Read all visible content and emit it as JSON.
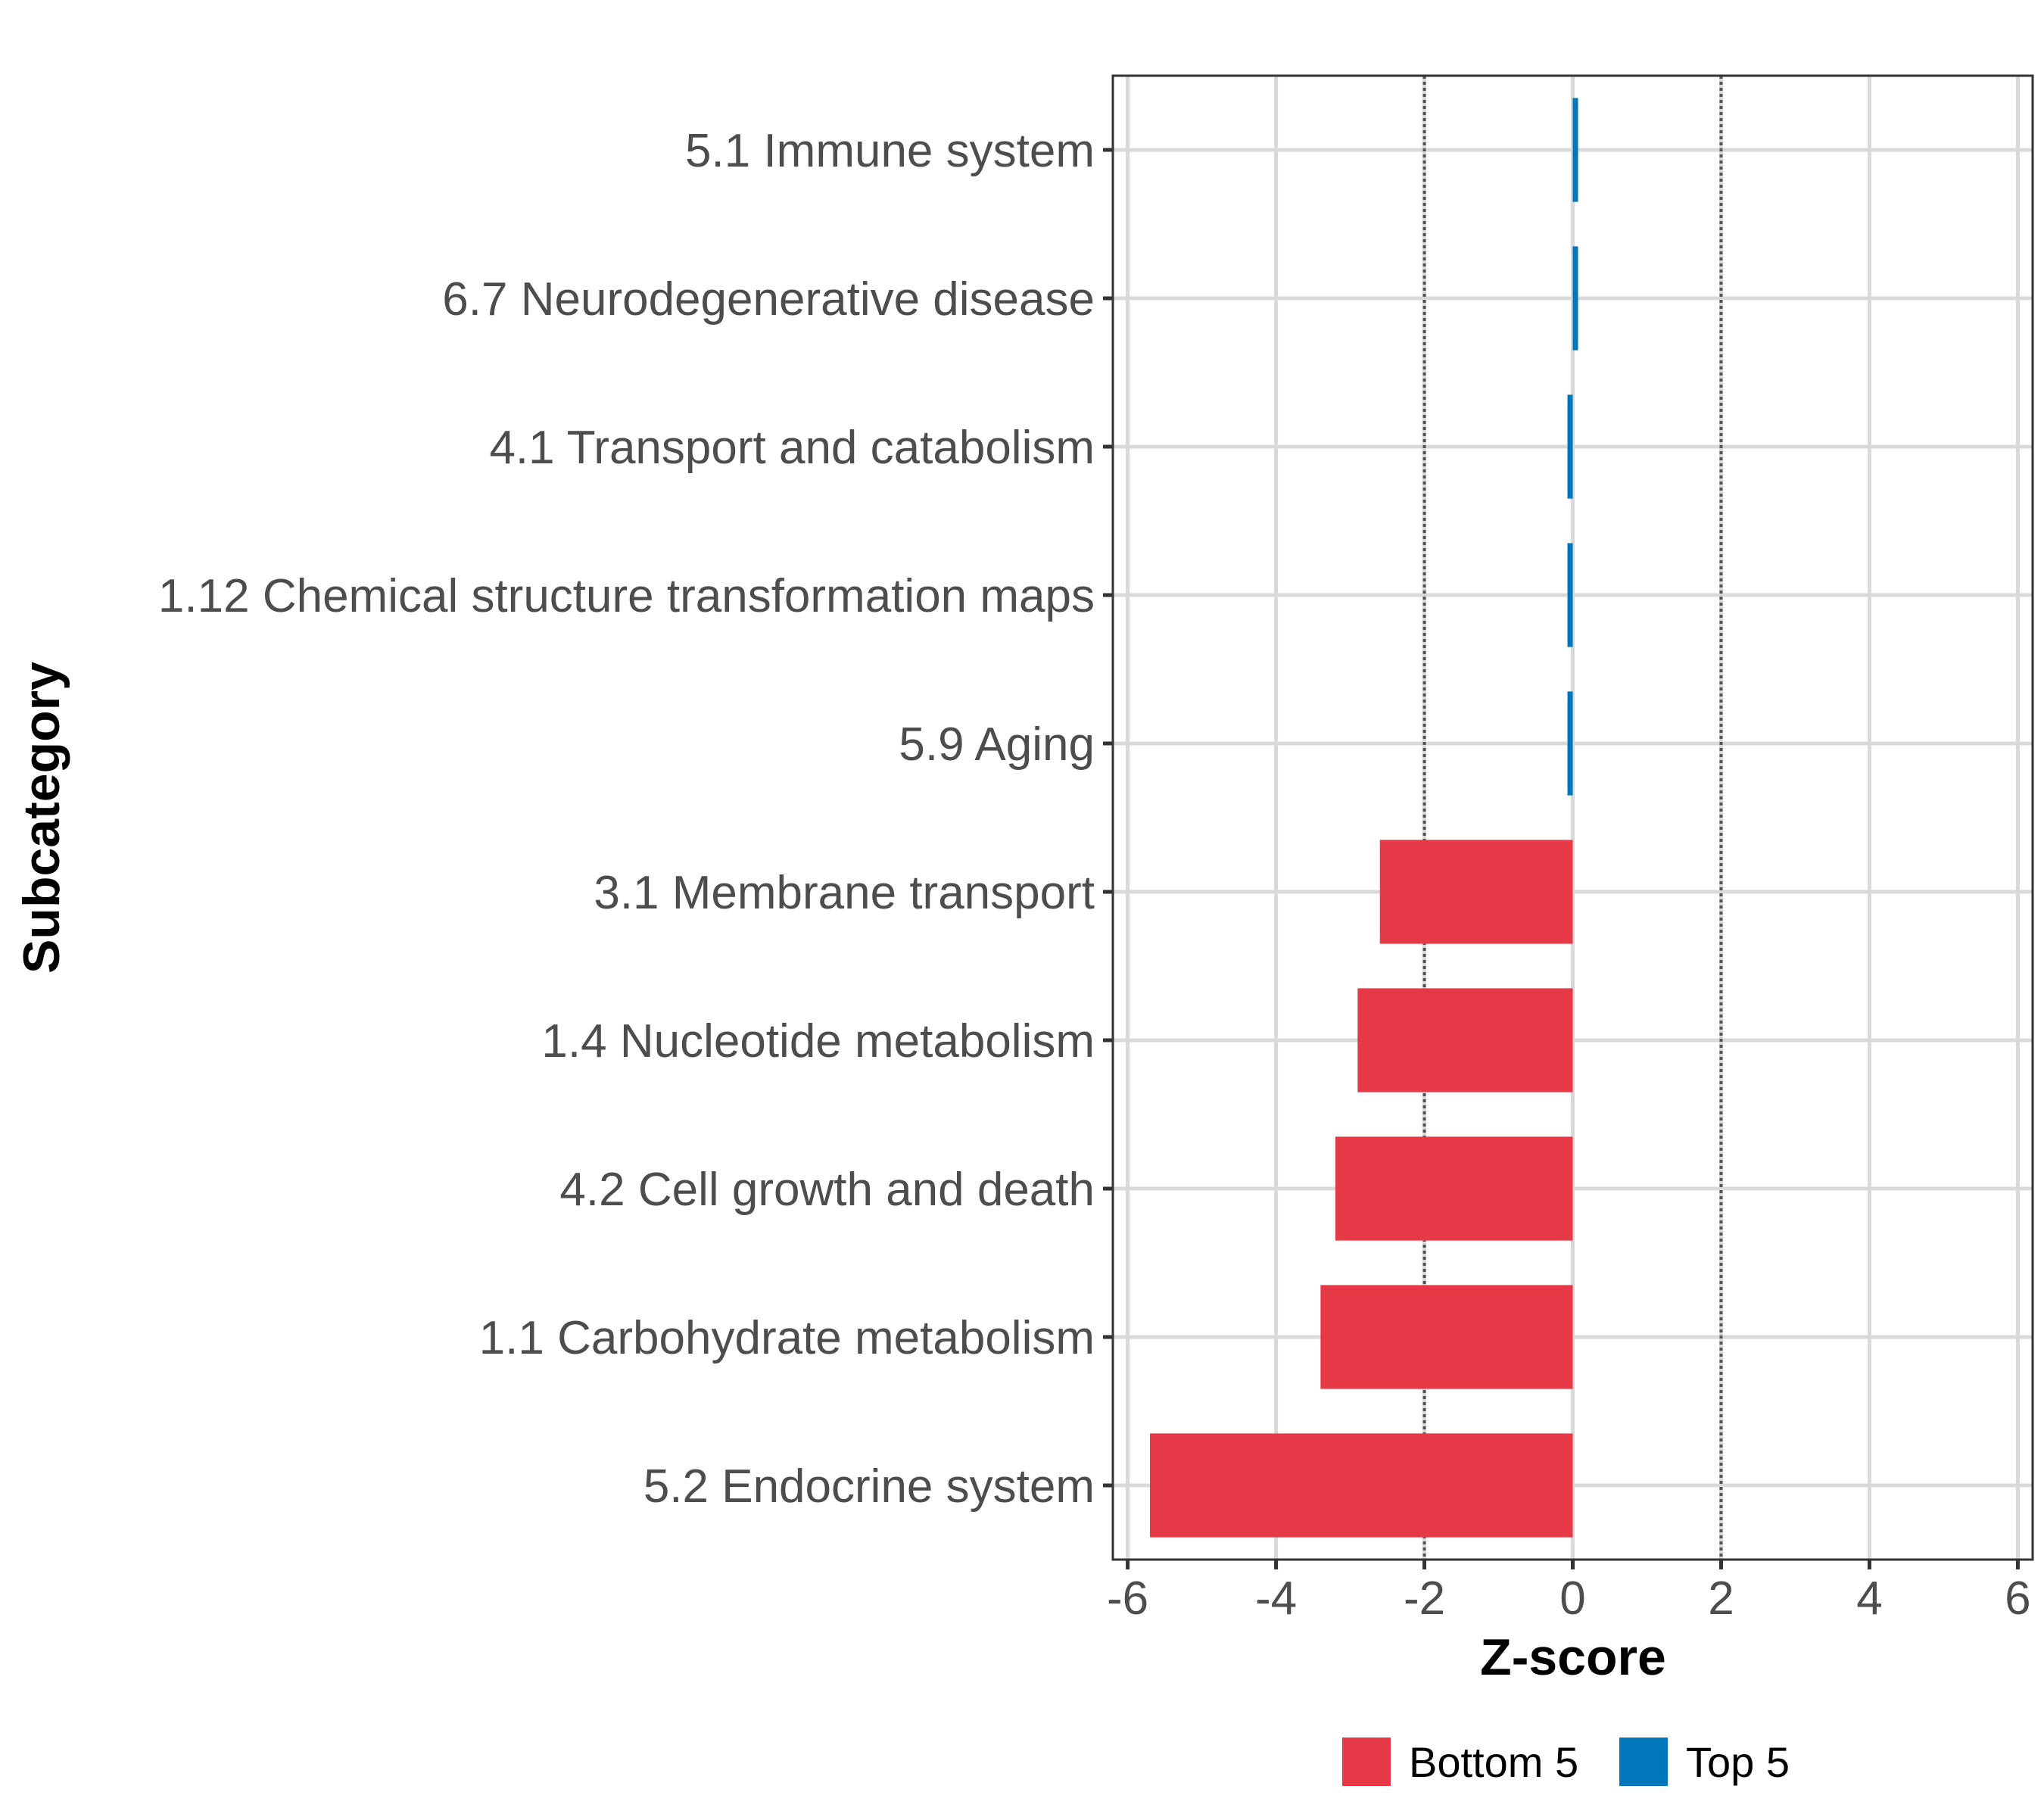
{
  "chart_data": {
    "type": "bar",
    "orientation": "horizontal",
    "xlabel": "Z-score",
    "ylabel": "Subcategory",
    "xlim": [
      -6.2,
      6.2
    ],
    "xticks": [
      -6,
      -4,
      -2,
      0,
      2,
      4,
      6
    ],
    "xtick_labels": [
      "-6",
      "-4",
      "-2",
      "0",
      "2",
      "4",
      "6"
    ],
    "reference_lines": [
      -2,
      2
    ],
    "grid": true,
    "legend_position": "bottom",
    "colors": {
      "Bottom 5": "#e63946",
      "Top 5": "#0077bb"
    },
    "legend": [
      {
        "name": "Bottom 5",
        "color": "#e63946"
      },
      {
        "name": "Top 5",
        "color": "#0077bb"
      }
    ],
    "categories": [
      "5.1 Immune system",
      "6.7 Neurodegenerative disease",
      "4.1 Transport and catabolism",
      "1.12 Chemical structure transformation maps",
      "5.9 Aging",
      "3.1 Membrane transport",
      "1.4 Nucleotide metabolism",
      "4.2 Cell growth and death",
      "1.1 Carbohydrate metabolism",
      "5.2 Endocrine system"
    ],
    "values": [
      0.04,
      0.02,
      -0.02,
      -0.04,
      -0.05,
      -2.6,
      -2.9,
      -3.2,
      -3.4,
      -5.7
    ],
    "groups": [
      "Top 5",
      "Top 5",
      "Top 5",
      "Top 5",
      "Top 5",
      "Bottom 5",
      "Bottom 5",
      "Bottom 5",
      "Bottom 5",
      "Bottom 5"
    ]
  }
}
